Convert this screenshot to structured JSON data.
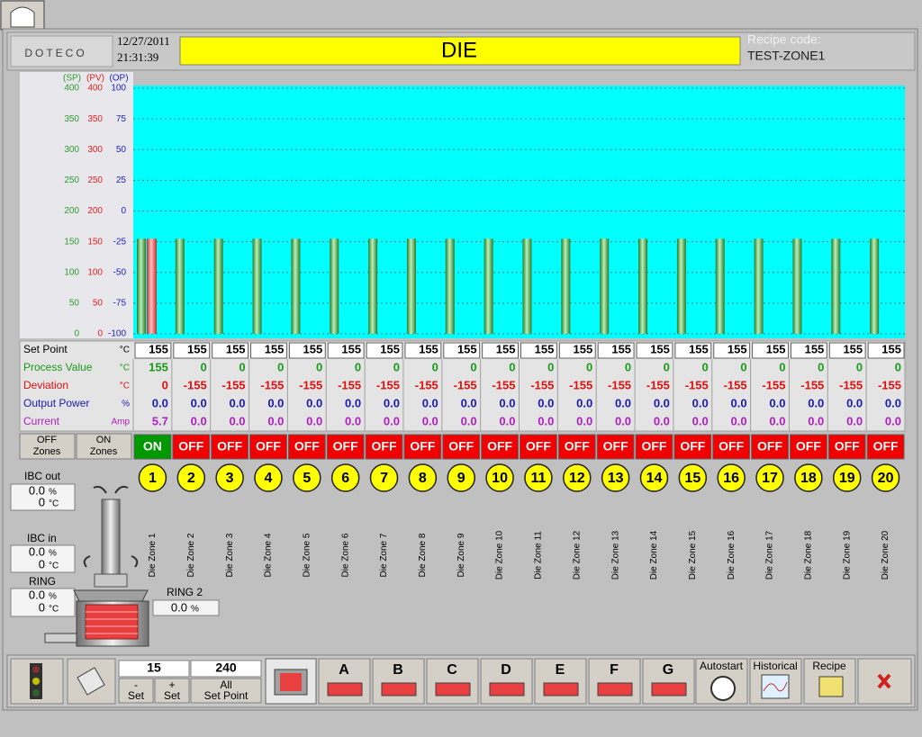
{
  "header": {
    "logo": "DOTECO",
    "date": "12/27/2011",
    "time": "21:31:39",
    "title": "DIE",
    "recipe_label": "Recipe code:",
    "recipe_code": "TEST-ZONE1"
  },
  "chart": {
    "axis_labels": [
      {
        "text": "(SP)",
        "color": "#2e9b2e"
      },
      {
        "text": "(PV)",
        "color": "#e02020"
      },
      {
        "text": "(OP)",
        "color": "#2020c0"
      }
    ],
    "ylim": [
      0,
      400
    ],
    "sp_ticks": [
      0,
      50,
      100,
      150,
      200,
      250,
      300,
      350,
      400
    ],
    "pv_ticks": [
      0,
      50,
      100,
      150,
      200,
      250,
      300,
      350,
      400
    ],
    "op_lim": [
      -100,
      100
    ],
    "op_ticks": [
      -100,
      -75,
      -50,
      -25,
      0,
      25,
      50,
      75,
      100
    ],
    "background": "#00ffff",
    "grid": true
  },
  "table": {
    "rows": [
      {
        "label": "Set Point",
        "unit": "°C",
        "color": "#000000",
        "values": [
          155,
          155,
          155,
          155,
          155,
          155,
          155,
          155,
          155,
          155,
          155,
          155,
          155,
          155,
          155,
          155,
          155,
          155,
          155,
          155
        ]
      },
      {
        "label": "Process Value",
        "unit": "°C",
        "color": "#1a9a1a",
        "values": [
          155,
          0,
          0,
          0,
          0,
          0,
          0,
          0,
          0,
          0,
          0,
          0,
          0,
          0,
          0,
          0,
          0,
          0,
          0,
          0
        ]
      },
      {
        "label": "Deviation",
        "unit": "°C",
        "color": "#e01010",
        "values": [
          0,
          -155,
          -155,
          -155,
          -155,
          -155,
          -155,
          -155,
          -155,
          -155,
          -155,
          -155,
          -155,
          -155,
          -155,
          -155,
          -155,
          -155,
          -155,
          -155
        ]
      },
      {
        "label": "Output Power",
        "unit": "%",
        "color": "#1a1ab0",
        "values": [
          "0.0",
          "0.0",
          "0.0",
          "0.0",
          "0.0",
          "0.0",
          "0.0",
          "0.0",
          "0.0",
          "0.0",
          "0.0",
          "0.0",
          "0.0",
          "0.0",
          "0.0",
          "0.0",
          "0.0",
          "0.0",
          "0.0",
          "0.0"
        ]
      },
      {
        "label": "Current",
        "unit": "Amp",
        "color": "#b020c0",
        "values": [
          "5.7",
          "0.0",
          "0.0",
          "0.0",
          "0.0",
          "0.0",
          "0.0",
          "0.0",
          "0.0",
          "0.0",
          "0.0",
          "0.0",
          "0.0",
          "0.0",
          "0.0",
          "0.0",
          "0.0",
          "0.0",
          "0.0",
          "0.0"
        ]
      }
    ]
  },
  "zone_buttons": [
    [
      "OFF",
      "Zones"
    ],
    [
      "ON",
      "Zones"
    ]
  ],
  "zones": [
    {
      "number": 1,
      "name": "Die Zone 1",
      "state": "ON",
      "color": "#009a00"
    },
    {
      "number": 2,
      "name": "Die Zone 2",
      "state": "OFF",
      "color": "#f00000"
    },
    {
      "number": 3,
      "name": "Die Zone 3",
      "state": "OFF",
      "color": "#f00000"
    },
    {
      "number": 4,
      "name": "Die Zone 4",
      "state": "OFF",
      "color": "#f00000"
    },
    {
      "number": 5,
      "name": "Die Zone 5",
      "state": "OFF",
      "color": "#f00000"
    },
    {
      "number": 6,
      "name": "Die Zone 6",
      "state": "OFF",
      "color": "#f00000"
    },
    {
      "number": 7,
      "name": "Die Zone 7",
      "state": "OFF",
      "color": "#f00000"
    },
    {
      "number": 8,
      "name": "Die Zone 8",
      "state": "OFF",
      "color": "#f00000"
    },
    {
      "number": 9,
      "name": "Die Zone 9",
      "state": "OFF",
      "color": "#f00000"
    },
    {
      "number": 10,
      "name": "Die Zone 10",
      "state": "OFF",
      "color": "#f00000"
    },
    {
      "number": 11,
      "name": "Die Zone 11",
      "state": "OFF",
      "color": "#f00000"
    },
    {
      "number": 12,
      "name": "Die Zone 12",
      "state": "OFF",
      "color": "#f00000"
    },
    {
      "number": 13,
      "name": "Die Zone 13",
      "state": "OFF",
      "color": "#f00000"
    },
    {
      "number": 14,
      "name": "Die Zone 14",
      "state": "OFF",
      "color": "#f00000"
    },
    {
      "number": 15,
      "name": "Die Zone 15",
      "state": "OFF",
      "color": "#f00000"
    },
    {
      "number": 16,
      "name": "Die Zone 16",
      "state": "OFF",
      "color": "#f00000"
    },
    {
      "number": 17,
      "name": "Die Zone 17",
      "state": "OFF",
      "color": "#f00000"
    },
    {
      "number": 18,
      "name": "Die Zone 18",
      "state": "OFF",
      "color": "#f00000"
    },
    {
      "number": 19,
      "name": "Die Zone 19",
      "state": "OFF",
      "color": "#f00000"
    },
    {
      "number": 20,
      "name": "Die Zone 20",
      "state": "OFF",
      "color": "#f00000"
    }
  ],
  "readouts": {
    "ibc_out": {
      "label": "IBC out",
      "percent": "0.0",
      "percent_unit": "%",
      "temp": 0,
      "temp_unit": "°C"
    },
    "ibc_in": {
      "label": "IBC in",
      "percent": "0.0",
      "percent_unit": "%",
      "temp": 0,
      "temp_unit": "°C"
    },
    "ring": {
      "label": "RING",
      "percent": "0.0",
      "percent_unit": "%",
      "temp": 0,
      "temp_unit": "°C"
    },
    "ring2": {
      "label": "RING 2",
      "percent": "0.0",
      "percent_unit": "%"
    }
  },
  "toolbar": {
    "step_value": 15,
    "all_value": 240,
    "minus_button": [
      "-",
      "Set"
    ],
    "plus_button": [
      "+",
      "Set"
    ],
    "all_button": [
      "All",
      "Set Point"
    ],
    "groups": [
      "A",
      "B",
      "C",
      "D",
      "E",
      "F",
      "G"
    ],
    "autostart": "Autostart",
    "historical": "Historical",
    "recipe": "Recipe"
  }
}
